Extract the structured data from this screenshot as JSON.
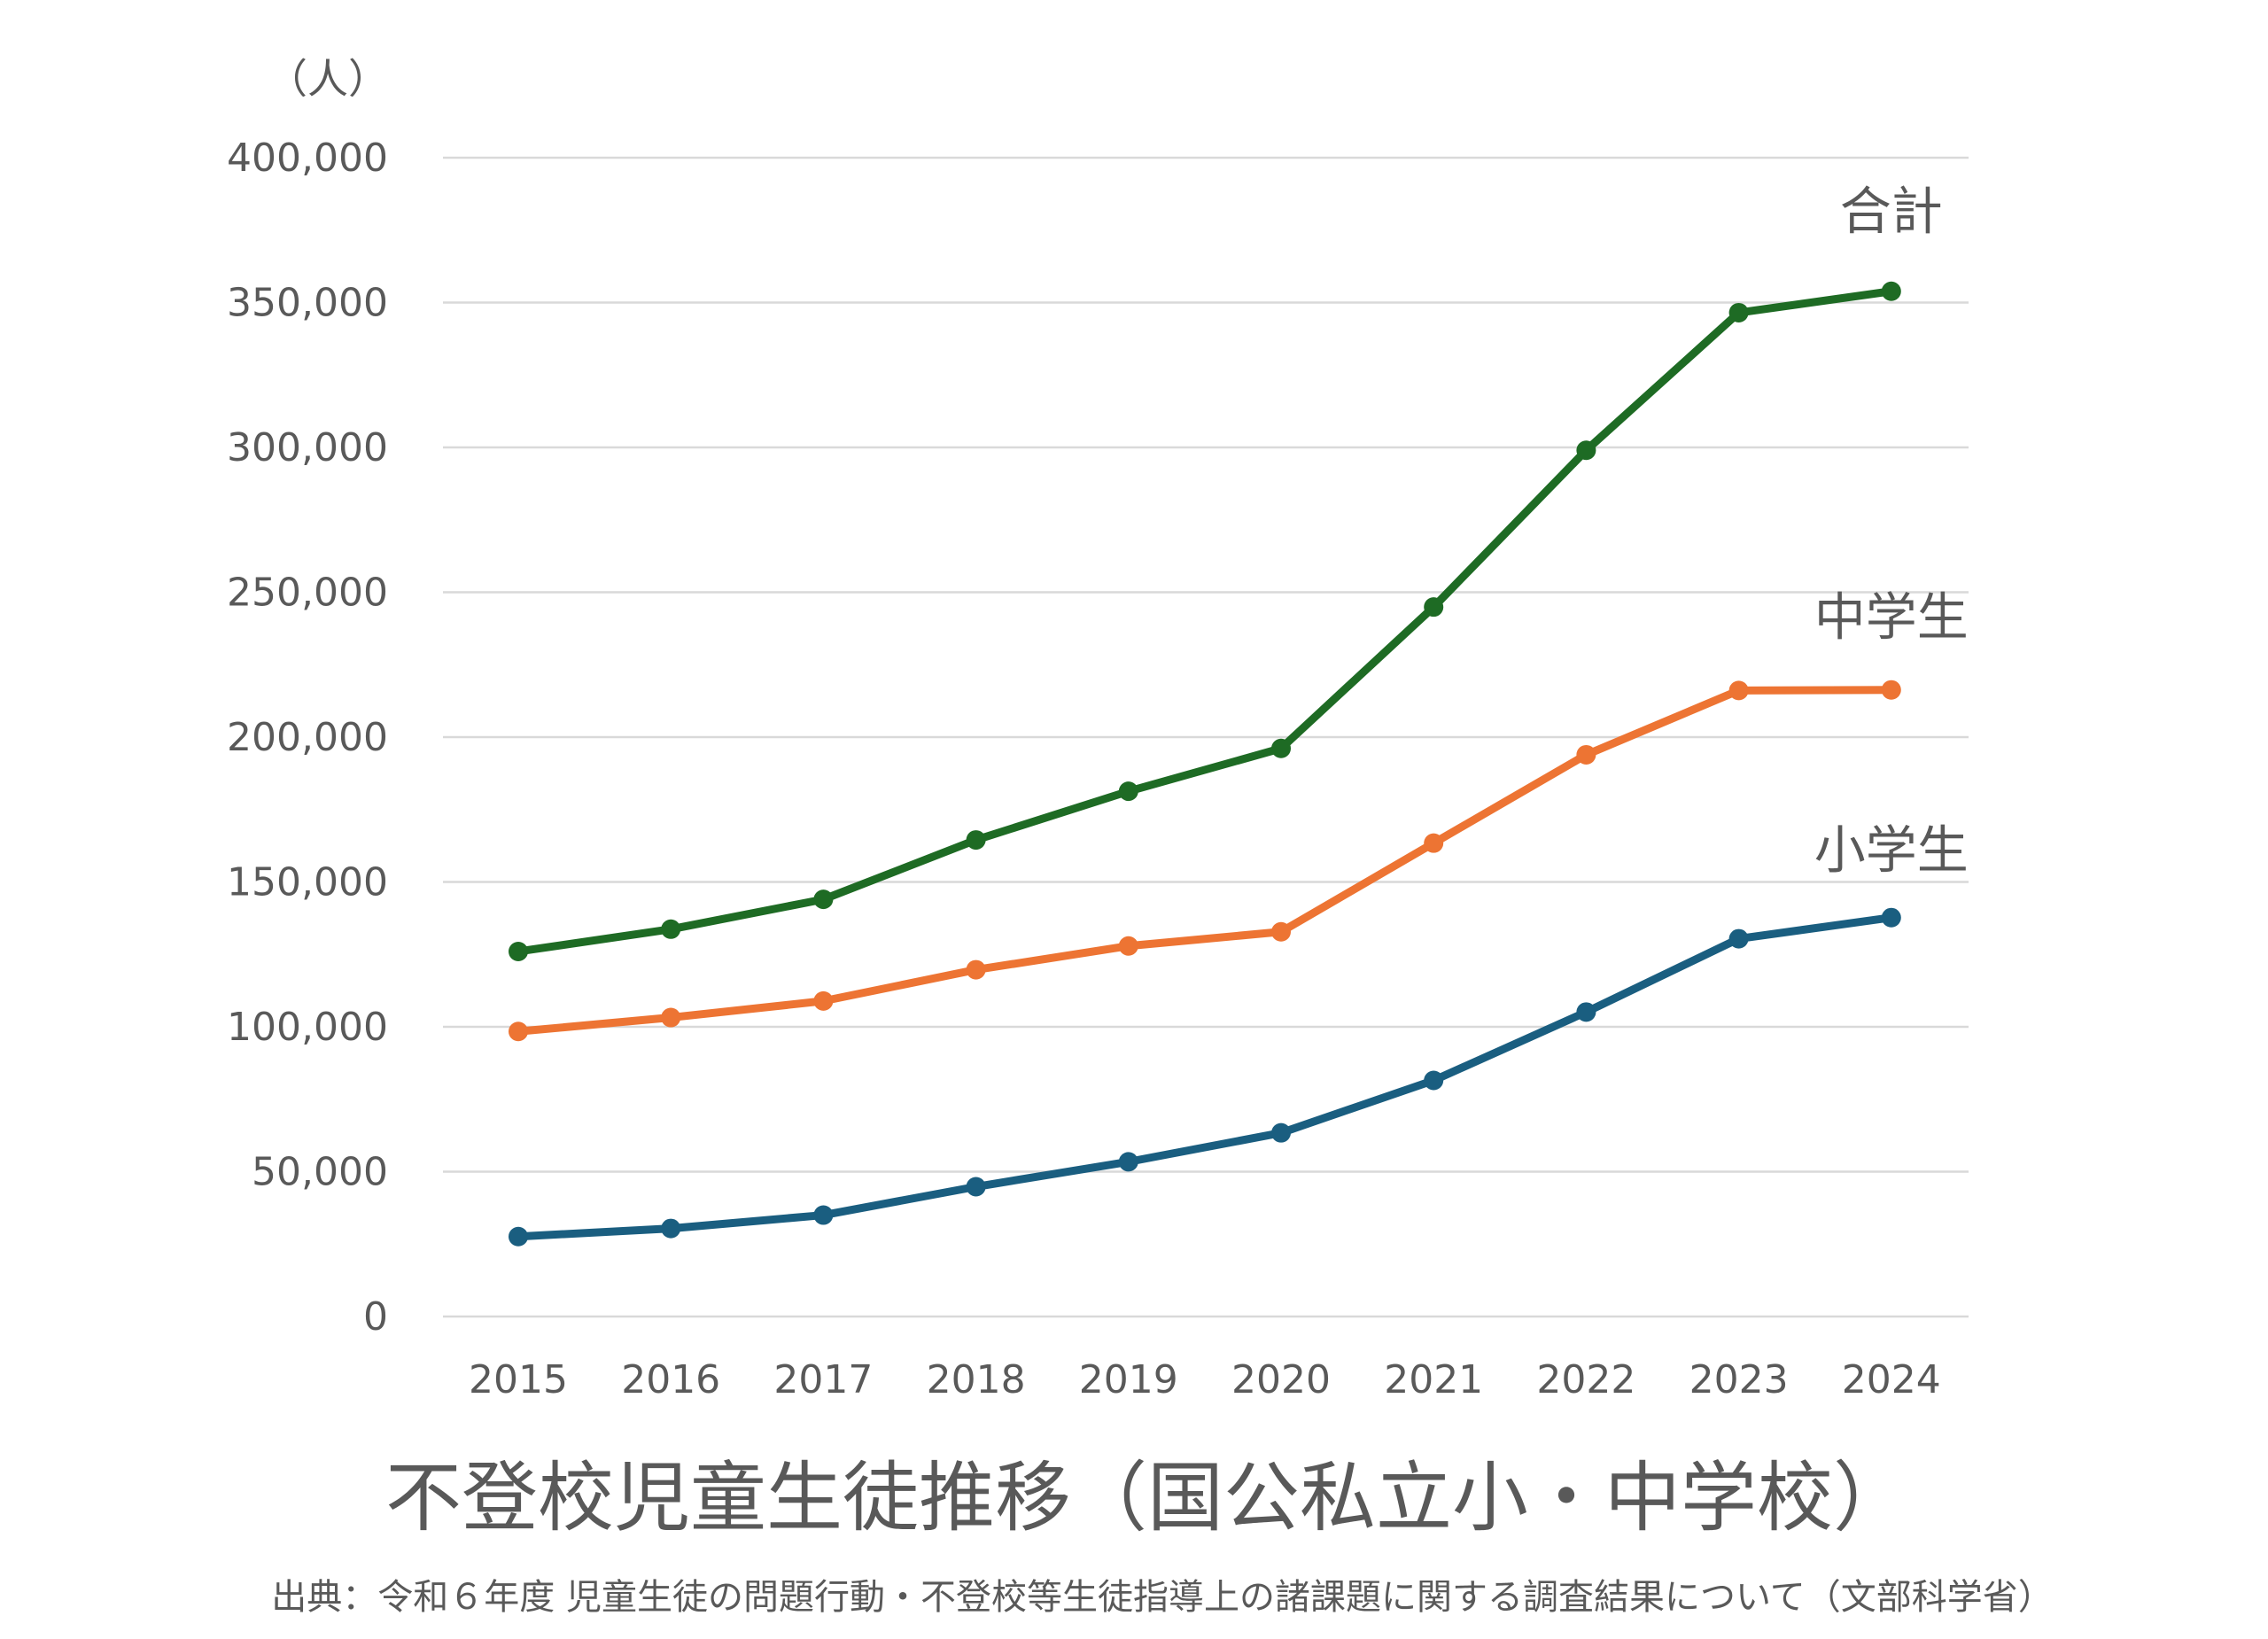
{
  "chart_data": {
    "type": "line",
    "title": "不登校児童生徒推移（国公私立小・中学校）",
    "source": "出典：令和６年度 児童生徒の問題行動・不登校等生徒指導上の諸課題に関する調査結果について（文部科学省）",
    "unit_label": "（人）",
    "xlabel": "",
    "ylabel": "",
    "ylim": [
      0,
      400000
    ],
    "yticks": [
      0,
      50000,
      100000,
      150000,
      200000,
      250000,
      300000,
      350000,
      400000
    ],
    "ytick_labels": [
      "0",
      "50,000",
      "100,000",
      "150,000",
      "200,000",
      "250,000",
      "300,000",
      "350,000",
      "400,000"
    ],
    "grid": true,
    "legend": "none",
    "categories": [
      "2015",
      "2016",
      "2017",
      "2018",
      "2019",
      "2020",
      "2021",
      "2022",
      "2023",
      "2024"
    ],
    "series": [
      {
        "name": "合計",
        "color": "#1e6b24",
        "values": [
          126000,
          133700,
          144000,
          164500,
          181300,
          196100,
          244900,
          299000,
          346500,
          353900
        ]
      },
      {
        "name": "中学生",
        "color": "#ed7433",
        "values": [
          98400,
          103200,
          108900,
          119700,
          127900,
          132800,
          163400,
          193900,
          216100,
          216300
        ]
      },
      {
        "name": "小学生",
        "color": "#1a5e80",
        "values": [
          27600,
          30400,
          35000,
          44800,
          53400,
          63400,
          81500,
          105100,
          130400,
          137700
        ]
      }
    ]
  }
}
